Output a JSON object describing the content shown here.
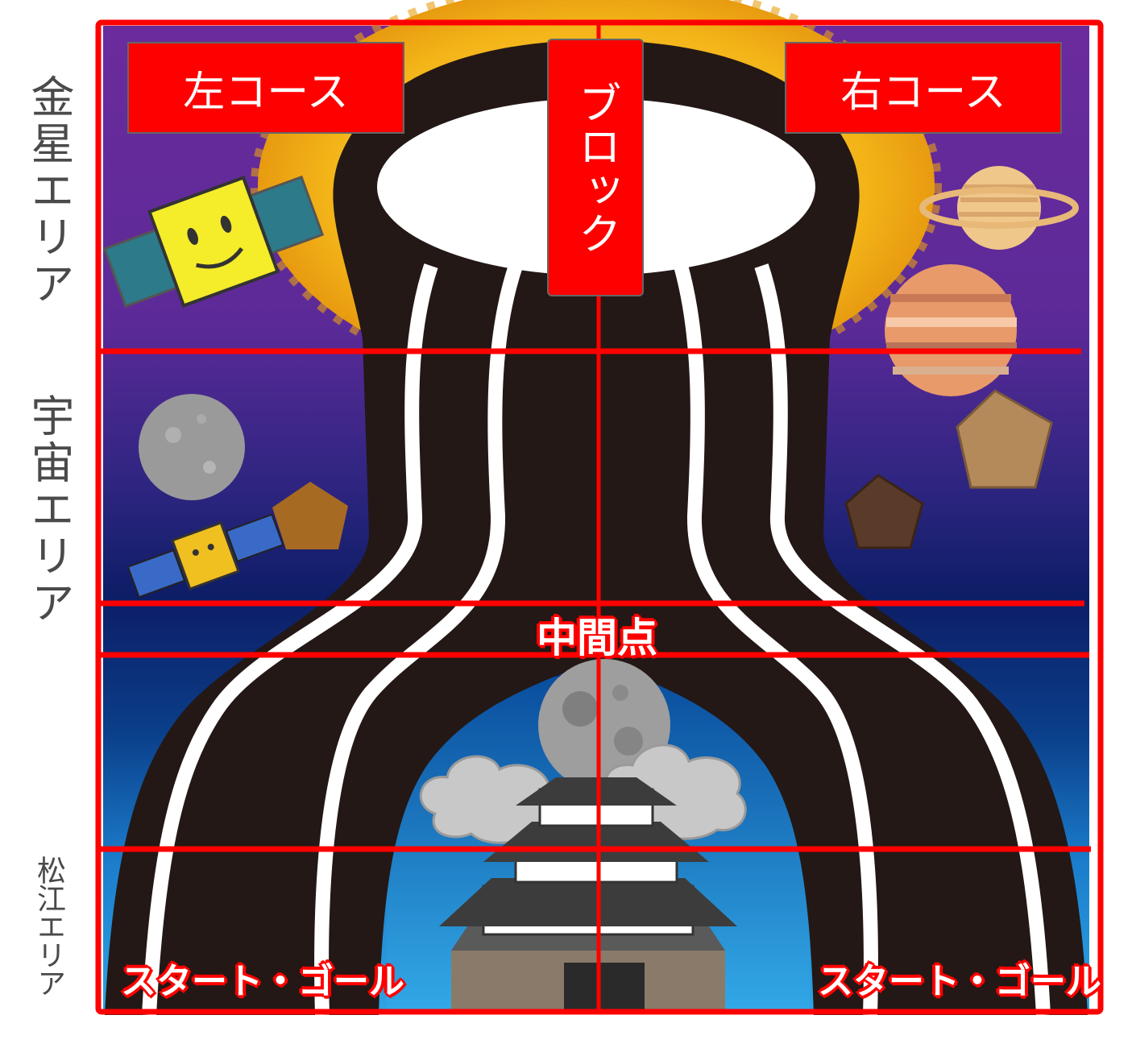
{
  "areas": {
    "venus": "金星エリア",
    "space": "宇宙エリア",
    "matsue": "松江エリア"
  },
  "courses": {
    "left": "左コース",
    "right": "右コース",
    "block": "ブロック"
  },
  "markers": {
    "midpoint": "中間点",
    "start_goal_left": "スタート・ゴール",
    "start_goal_right": "スタート・ゴール"
  },
  "colors": {
    "frame": "#ff0000",
    "track": "#231815",
    "lane": "#ffffff",
    "space_top": "#6a2a9a",
    "space_bottom": "#0a1f6a",
    "sky": "#2a9ee0",
    "sun": "#f5c21b"
  },
  "icons": [
    "satellite-icon",
    "saturn-icon",
    "jupiter-icon",
    "moon-icon",
    "mercury-icon",
    "asteroid-icon",
    "castle-icon",
    "cloud-icon",
    "sun-icon"
  ]
}
